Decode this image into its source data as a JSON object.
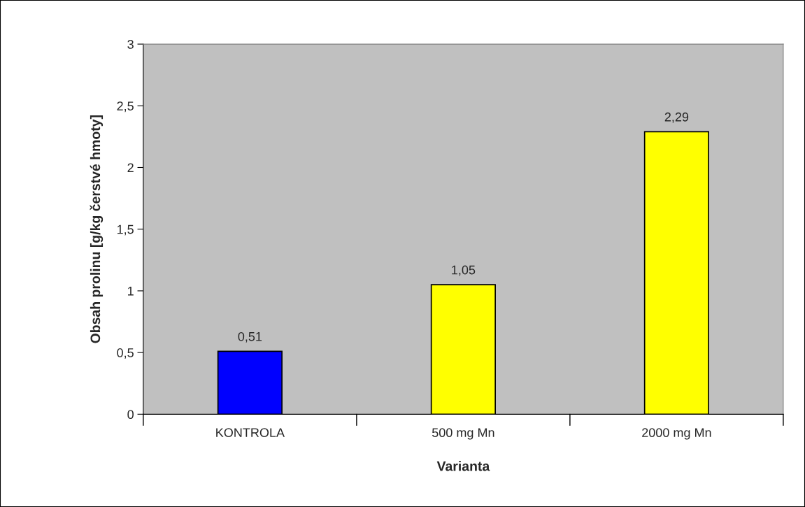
{
  "chart_data": {
    "type": "bar",
    "xlabel": "Varianta",
    "ylabel": "Obsah prolinu [g/kg čerstvé hmoty]",
    "categories": [
      "KONTROLA",
      "500 mg Mn",
      "2000 mg Mn"
    ],
    "values": [
      0.51,
      1.05,
      2.29
    ],
    "colors": [
      "#0000ff",
      "#ffff00",
      "#ffff00"
    ],
    "value_labels": [
      "0,51",
      "1,05",
      "2,29"
    ],
    "ylim": [
      0,
      3
    ],
    "yticks": [
      0,
      {
        "value": 0.5,
        "label": "0,5"
      },
      1,
      {
        "value": 1.5,
        "label": "1,5"
      },
      2,
      {
        "value": 2.5,
        "label": "2,5"
      },
      3
    ],
    "grid": false
  }
}
